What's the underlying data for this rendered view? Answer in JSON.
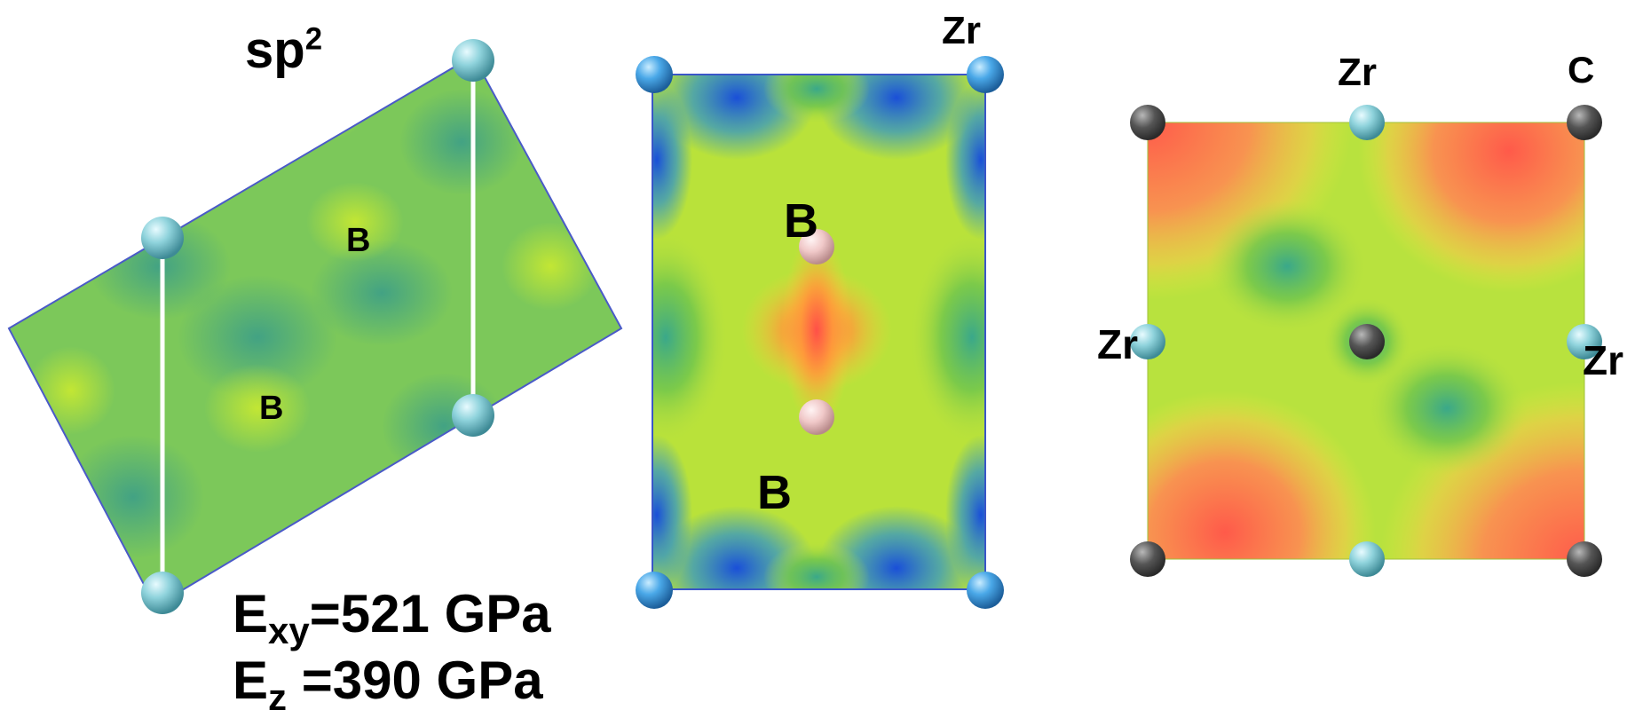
{
  "panels": [
    {
      "title": "sp",
      "title_sup": "2",
      "labels": [
        "B",
        "B"
      ],
      "moduli": [
        {
          "symbol": "E",
          "subscript": "xy",
          "value": "=521 GPa"
        },
        {
          "symbol": "E",
          "subscript": "z",
          "value": " =390 GPa"
        }
      ]
    },
    {
      "labels": {
        "zr": "Zr",
        "b_top": "B",
        "b_bottom": "B"
      }
    },
    {
      "labels": {
        "zr_top": "Zr",
        "c": "C",
        "zr_left": "Zr",
        "zr_right": "Zr"
      }
    }
  ],
  "colors": {
    "zr_atom": "#8fd3dc",
    "zr_atom_blue": "#4aa8e8",
    "b_atom": "#f0c8c8",
    "c_atom": "#555555",
    "map_low": "#1f5fe0",
    "map_mid": "#aee83a",
    "map_high": "#ff5a4a"
  }
}
